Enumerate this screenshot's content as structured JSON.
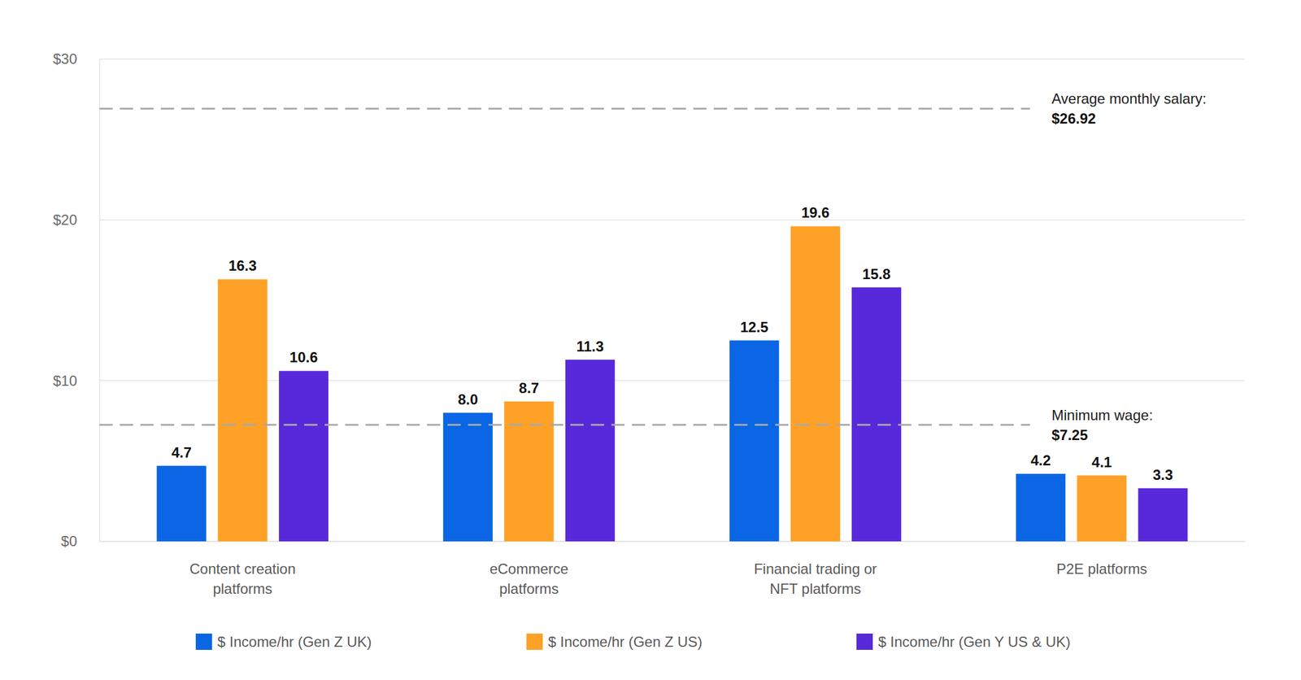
{
  "chart_data": {
    "type": "bar",
    "categories": [
      "Content creation platforms",
      "eCommerce platforms",
      "Financial trading or NFT platforms",
      "P2E platforms"
    ],
    "series": [
      {
        "name": "$ Income/hr (Gen Z UK)",
        "color": "#0a66e4",
        "values": [
          4.7,
          8.0,
          12.5,
          4.2
        ],
        "value_labels": [
          "4.7",
          "8.0",
          "12.5",
          "4.2"
        ]
      },
      {
        "name": "$ Income/hr (Gen Z US)",
        "color": "#ffa126",
        "values": [
          16.3,
          8.7,
          19.6,
          4.1
        ]
      },
      {
        "name": "$ Income/hr (Gen Y US & UK)",
        "color": "#5829db",
        "values": [
          10.6,
          11.3,
          15.8,
          3.3
        ]
      }
    ],
    "ylim": [
      0,
      30
    ],
    "yticks": [
      {
        "value": 0,
        "label": "$0"
      },
      {
        "value": 10,
        "label": "$10"
      },
      {
        "value": 20,
        "label": "$20"
      },
      {
        "value": 30,
        "label": "$30"
      }
    ],
    "reference_lines": [
      {
        "label": "Average monthly salary:",
        "value": 26.92,
        "value_label": "$26.92"
      },
      {
        "label": "Minimum wage:",
        "value": 7.25,
        "value_label": "$7.25"
      }
    ],
    "grid": true,
    "data_labels": true,
    "legend": "bottom"
  }
}
